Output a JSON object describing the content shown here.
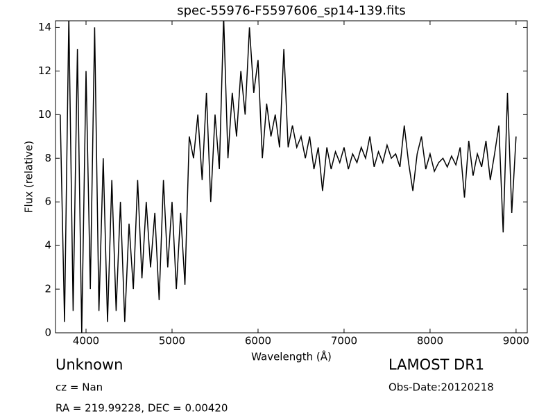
{
  "chart_data": {
    "type": "line",
    "title": "spec-55976-F5597606_sp14-139.fits",
    "x_label": "Wavelength (Å)",
    "y_label": "Flux (relative)",
    "annotations": [
      "Unknown",
      "cz = Nan",
      "RA = 219.99228, DEC = 0.00420",
      "LAMOST DR1",
      "Obs-Date:20120218"
    ],
    "color": "#000000",
    "x": [
      3700,
      3750,
      3800,
      3850,
      3900,
      3950,
      4000,
      4050,
      4100,
      4150,
      4200,
      4250,
      4300,
      4350,
      4400,
      4450,
      4500,
      4550,
      4600,
      4650,
      4700,
      4750,
      4800,
      4850,
      4900,
      4950,
      5000,
      5050,
      5100,
      5150,
      5200,
      5250,
      5300,
      5350,
      5400,
      5450,
      5500,
      5550,
      5600,
      5650,
      5700,
      5750,
      5800,
      5850,
      5900,
      5950,
      6000,
      6050,
      6100,
      6150,
      6200,
      6250,
      6300,
      6350,
      6400,
      6450,
      6500,
      6550,
      6600,
      6650,
      6700,
      6750,
      6800,
      6850,
      6900,
      6950,
      7000,
      7050,
      7100,
      7150,
      7200,
      7250,
      7300,
      7350,
      7400,
      7450,
      7500,
      7550,
      7600,
      7650,
      7700,
      7750,
      7800,
      7850,
      7900,
      7950,
      8000,
      8050,
      8100,
      8150,
      8200,
      8250,
      8300,
      8350,
      8400,
      8450,
      8500,
      8550,
      8600,
      8650,
      8700,
      8750,
      8800,
      8850,
      8900,
      8950,
      9000
    ],
    "values": [
      10,
      0.5,
      14.5,
      1,
      13,
      0,
      12,
      2,
      14,
      1,
      8,
      0.5,
      7,
      1,
      6,
      0.5,
      5,
      2,
      7,
      2.5,
      6,
      3,
      5.5,
      1.5,
      7,
      3,
      6,
      2,
      5.5,
      2.2,
      9,
      8,
      10,
      7,
      11,
      6,
      10,
      7.5,
      14.5,
      8,
      11,
      9,
      12,
      10,
      14,
      11,
      12.5,
      8,
      10.5,
      9,
      10,
      8.5,
      13,
      8.5,
      9.5,
      8.5,
      9,
      8,
      9,
      7.5,
      8.5,
      6.5,
      8.5,
      7.5,
      8.3,
      7.8,
      8.5,
      7.5,
      8.2,
      7.8,
      8.5,
      8,
      9,
      7.6,
      8.3,
      7.8,
      8.6,
      8,
      8.2,
      7.6,
      9.5,
      7.8,
      6.5,
      8.2,
      9,
      7.5,
      8.2,
      7.4,
      7.8,
      8,
      7.6,
      8.1,
      7.7,
      8.5,
      6.2,
      8.8,
      7.2,
      8.2,
      7.6,
      8.8,
      7,
      8.2,
      9.5,
      4.6,
      11,
      5.5,
      9
    ],
    "xlim": [
      3645,
      9130
    ],
    "ylim": [
      0,
      14.3
    ],
    "xticks": [
      4000,
      5000,
      6000,
      7000,
      8000,
      9000
    ],
    "yticks": [
      0,
      2,
      4,
      6,
      8,
      10,
      12,
      14
    ]
  }
}
